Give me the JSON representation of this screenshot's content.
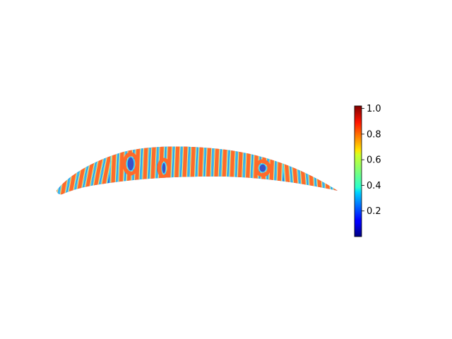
{
  "chart_data": {
    "type": "heatmap",
    "title": "",
    "xlabel": "",
    "ylabel": "",
    "axes_visible": false,
    "grid": false,
    "colormap": "jet",
    "colorbar": {
      "placement": "right",
      "range": [
        0.0,
        1.02
      ],
      "ticks": [
        0.2,
        0.4,
        0.6,
        0.8,
        1.0
      ],
      "tick_labels": [
        "0.2",
        "0.4",
        "0.6",
        "0.8",
        "1.0"
      ]
    },
    "field": {
      "description_shape": "airfoil",
      "pattern": "stripes",
      "value_min": 0.0,
      "value_max": 1.0
    }
  },
  "colors": {
    "low": "#00007f",
    "mid_low": "#3c50c8",
    "mid": "#7fff7f",
    "mid_high": "#ff6a2a",
    "high": "#7f0000"
  }
}
